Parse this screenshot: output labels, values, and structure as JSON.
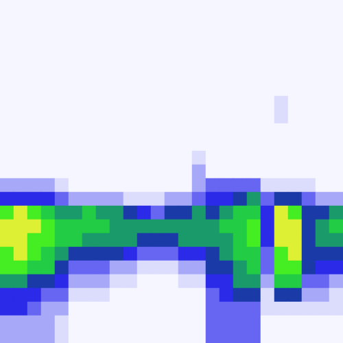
{
  "chart_data": {
    "type": "heatmap",
    "tick_labels": false,
    "grid": false,
    "cells": [
      [
        0,
        0,
        0,
        0,
        0,
        0,
        0,
        0,
        0,
        0,
        0,
        0,
        0,
        0,
        0,
        0,
        0,
        0,
        0,
        0,
        0,
        0,
        0,
        0,
        0
      ],
      [
        0,
        0,
        0,
        0,
        0,
        0,
        0,
        0,
        0,
        0,
        0,
        0,
        0,
        0,
        0,
        0,
        0,
        0,
        0,
        0,
        0,
        0,
        0,
        0,
        0
      ],
      [
        0,
        0,
        0,
        0,
        0,
        0,
        0,
        0,
        0,
        0,
        0,
        0,
        0,
        0,
        0,
        0,
        0,
        0,
        0,
        0,
        0,
        0,
        0,
        0,
        0
      ],
      [
        0,
        0,
        0,
        0,
        0,
        0,
        0,
        0,
        0,
        0,
        0,
        0,
        0,
        0,
        0,
        0,
        0,
        0,
        0,
        0,
        0,
        0,
        0,
        0,
        0
      ],
      [
        0,
        0,
        0,
        0,
        0,
        0,
        0,
        0,
        0,
        0,
        0,
        0,
        0,
        0,
        0,
        0,
        0,
        0,
        0,
        0,
        0,
        0,
        0,
        0,
        0
      ],
      [
        0,
        0,
        0,
        0,
        0,
        0,
        0,
        0,
        0,
        0,
        0,
        0,
        0,
        0,
        0,
        0,
        0,
        0,
        0,
        0,
        0,
        0,
        0,
        0,
        0
      ],
      [
        0,
        0,
        0,
        0,
        0,
        0,
        0,
        0,
        0,
        0,
        0,
        0,
        0,
        0,
        0,
        0,
        0,
        0,
        0,
        0,
        0,
        0,
        0,
        0,
        0
      ],
      [
        0,
        0,
        0,
        0,
        0,
        0,
        0,
        0,
        0,
        0,
        0,
        0,
        0,
        0,
        0,
        0,
        0,
        0,
        0,
        0,
        1,
        0,
        0,
        0,
        0
      ],
      [
        0,
        0,
        0,
        0,
        0,
        0,
        0,
        0,
        0,
        0,
        0,
        0,
        0,
        0,
        0,
        0,
        0,
        0,
        0,
        0,
        1,
        0,
        0,
        0,
        0
      ],
      [
        0,
        0,
        0,
        0,
        0,
        0,
        0,
        0,
        0,
        0,
        0,
        0,
        0,
        0,
        0,
        0,
        0,
        0,
        0,
        0,
        0,
        0,
        0,
        0,
        0
      ],
      [
        0,
        0,
        0,
        0,
        0,
        0,
        0,
        0,
        0,
        0,
        0,
        0,
        0,
        0,
        0,
        0,
        0,
        0,
        0,
        0,
        0,
        0,
        0,
        0,
        0
      ],
      [
        0,
        0,
        0,
        0,
        0,
        0,
        0,
        0,
        0,
        0,
        0,
        0,
        0,
        0,
        1,
        0,
        0,
        0,
        0,
        0,
        0,
        0,
        0,
        0,
        0
      ],
      [
        0,
        0,
        0,
        0,
        0,
        0,
        0,
        0,
        0,
        0,
        0,
        0,
        0,
        0,
        2,
        0,
        0,
        0,
        0,
        0,
        0,
        0,
        0,
        0,
        0
      ],
      [
        2,
        2,
        2,
        2,
        1,
        0,
        0,
        0,
        0,
        0,
        0,
        0,
        0,
        0,
        2,
        3,
        3,
        3,
        3,
        1,
        1,
        1,
        1,
        0,
        0
      ],
      [
        4,
        4,
        4,
        4,
        3,
        2,
        2,
        2,
        2,
        1,
        1,
        1,
        2,
        2,
        3,
        4,
        4,
        5,
        6,
        3,
        5,
        5,
        3,
        2,
        2
      ],
      [
        8,
        9,
        8,
        7,
        6,
        6,
        7,
        6,
        6,
        5,
        4,
        3,
        5,
        5,
        6,
        5,
        6,
        7,
        7,
        4,
        9,
        8,
        5,
        5,
        6
      ],
      [
        9,
        9,
        9,
        8,
        7,
        7,
        7,
        7,
        6,
        6,
        6,
        6,
        6,
        6,
        6,
        6,
        7,
        7,
        8,
        4,
        9,
        9,
        5,
        6,
        7
      ],
      [
        9,
        9,
        8,
        8,
        7,
        7,
        6,
        6,
        6,
        6,
        5,
        5,
        5,
        6,
        6,
        6,
        6,
        7,
        8,
        4,
        9,
        9,
        5,
        6,
        6
      ],
      [
        8,
        9,
        8,
        7,
        6,
        5,
        5,
        5,
        5,
        4,
        3,
        3,
        3,
        4,
        4,
        5,
        6,
        7,
        7,
        3,
        8,
        9,
        5,
        5,
        5
      ],
      [
        8,
        8,
        7,
        7,
        5,
        3,
        3,
        3,
        2,
        2,
        1,
        1,
        1,
        2,
        2,
        5,
        5,
        6,
        7,
        3,
        8,
        8,
        5,
        4,
        4
      ],
      [
        6,
        6,
        5,
        5,
        4,
        2,
        2,
        2,
        1,
        1,
        0,
        0,
        0,
        1,
        1,
        4,
        4,
        6,
        6,
        2,
        7,
        7,
        3,
        3,
        2
      ],
      [
        4,
        4,
        4,
        3,
        3,
        1,
        1,
        1,
        0,
        0,
        0,
        0,
        0,
        0,
        0,
        3,
        4,
        5,
        5,
        1,
        5,
        5,
        2,
        2,
        1
      ],
      [
        4,
        4,
        3,
        2,
        2,
        0,
        0,
        0,
        0,
        0,
        0,
        0,
        0,
        0,
        0,
        3,
        3,
        3,
        3,
        1,
        1,
        1,
        1,
        1,
        1
      ],
      [
        2,
        2,
        2,
        2,
        1,
        0,
        0,
        0,
        0,
        0,
        0,
        0,
        0,
        0,
        0,
        3,
        3,
        3,
        3,
        0,
        0,
        0,
        0,
        0,
        0
      ],
      [
        2,
        2,
        2,
        2,
        1,
        0,
        0,
        0,
        0,
        0,
        0,
        0,
        0,
        0,
        0,
        3,
        3,
        3,
        3,
        0,
        0,
        0,
        0,
        0,
        0
      ]
    ]
  }
}
